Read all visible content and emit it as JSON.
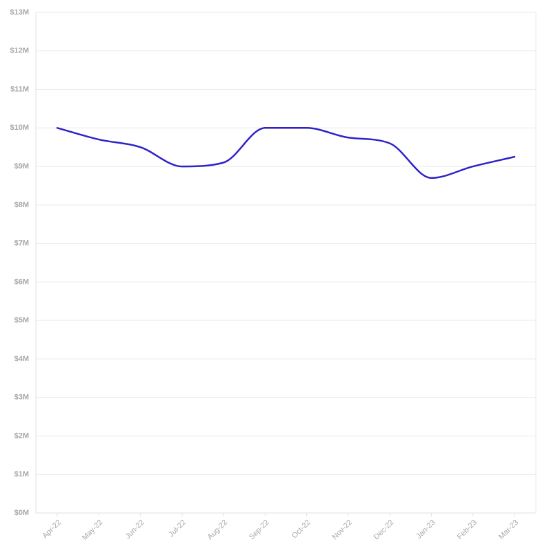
{
  "chart_data": {
    "type": "line",
    "title": "",
    "xlabel": "",
    "ylabel": "",
    "x": [
      "Apr-22",
      "May-22",
      "Jun-22",
      "Jul-22",
      "Aug-22",
      "Sep-22",
      "Oct-22",
      "Nov-22",
      "Dec-22",
      "Jan-23",
      "Feb-23",
      "Mar-23"
    ],
    "series": [
      {
        "values": [
          10.0,
          9.7,
          9.5,
          9.0,
          9.1,
          10.0,
          10.0,
          9.75,
          9.6,
          8.7,
          9.0,
          9.25
        ],
        "color": "#2e22c8"
      }
    ],
    "y_ticks": [
      "$0M",
      "$1M",
      "$2M",
      "$3M",
      "$4M",
      "$5M",
      "$6M",
      "$7M",
      "$8M",
      "$9M",
      "$10M",
      "$11M",
      "$12M",
      "$13M"
    ],
    "ylim": [
      0,
      13
    ],
    "grid": true,
    "legend": "none"
  }
}
